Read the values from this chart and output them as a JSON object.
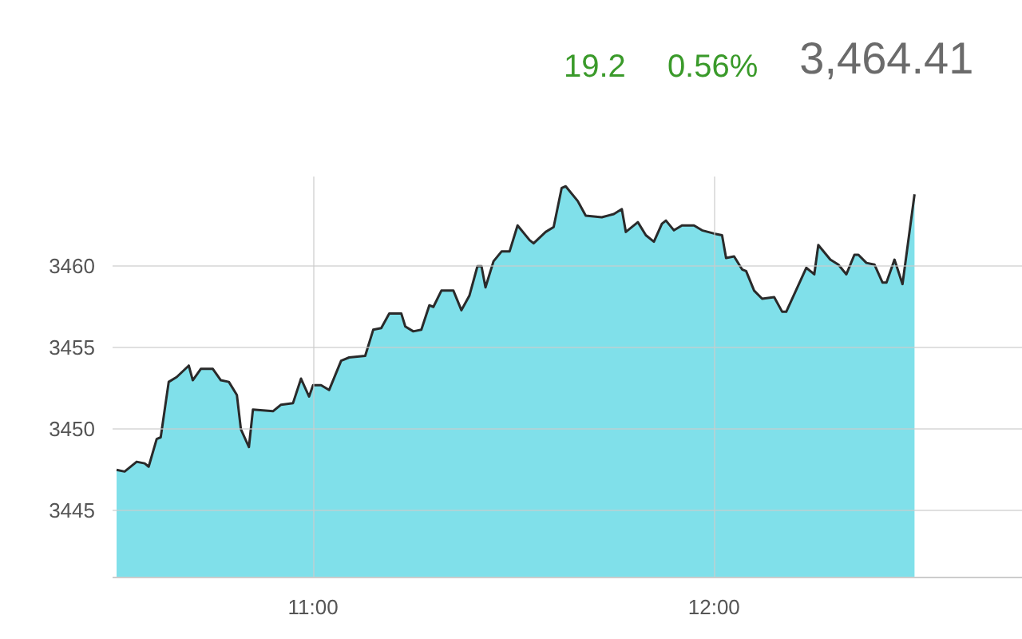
{
  "chart_data": {
    "type": "area",
    "annotations": [
      "19.2",
      "0.56%",
      "3,464.41"
    ],
    "x": [
      10.51,
      10.53,
      10.56,
      10.58,
      10.59,
      10.61,
      10.62,
      10.64,
      10.66,
      10.69,
      10.7,
      10.72,
      10.75,
      10.77,
      10.79,
      10.81,
      10.82,
      10.84,
      10.85,
      10.9,
      10.92,
      10.95,
      10.97,
      10.99,
      11.0,
      11.02,
      11.04,
      11.07,
      11.09,
      11.13,
      11.15,
      11.17,
      11.19,
      11.22,
      11.23,
      11.25,
      11.27,
      11.29,
      11.3,
      11.32,
      11.35,
      11.37,
      11.39,
      11.41,
      11.42,
      11.43,
      11.45,
      11.47,
      11.49,
      11.51,
      11.54,
      11.55,
      11.58,
      11.6,
      11.62,
      11.63,
      11.66,
      11.68,
      11.72,
      11.75,
      11.77,
      11.78,
      11.81,
      11.83,
      11.85,
      11.87,
      11.88,
      11.9,
      11.92,
      11.95,
      11.97,
      12.0,
      12.02,
      12.03,
      12.05,
      12.07,
      12.08,
      12.1,
      12.12,
      12.15,
      12.17,
      12.18,
      12.23,
      12.25,
      12.26,
      12.29,
      12.31,
      12.33,
      12.35,
      12.36,
      12.38,
      12.4,
      12.42,
      12.43,
      12.45,
      12.47,
      12.5
    ],
    "series": [
      {
        "color": "#80e0ea",
        "values": [
          3447.5,
          3447.4,
          3448.0,
          3447.9,
          3447.7,
          3449.4,
          3449.5,
          3452.9,
          3453.2,
          3453.9,
          3453.0,
          3453.7,
          3453.7,
          3453.0,
          3452.9,
          3452.1,
          3450.0,
          3448.9,
          3451.2,
          3451.1,
          3451.5,
          3451.6,
          3453.1,
          3452.0,
          3452.7,
          3452.7,
          3452.4,
          3454.2,
          3454.4,
          3454.5,
          3456.1,
          3456.2,
          3457.1,
          3457.1,
          3456.3,
          3456.0,
          3456.1,
          3457.6,
          3457.5,
          3458.5,
          3458.5,
          3457.3,
          3458.2,
          3460.0,
          3460.0,
          3458.7,
          3460.3,
          3460.9,
          3460.9,
          3462.5,
          3461.6,
          3461.4,
          3462.1,
          3462.4,
          3464.8,
          3464.9,
          3464.0,
          3463.1,
          3463.0,
          3463.2,
          3463.5,
          3462.1,
          3462.7,
          3461.9,
          3461.5,
          3462.6,
          3462.8,
          3462.2,
          3462.5,
          3462.5,
          3462.2,
          3462.0,
          3461.9,
          3460.5,
          3460.6,
          3459.8,
          3459.7,
          3458.5,
          3458.0,
          3458.1,
          3457.2,
          3457.2,
          3459.9,
          3459.5,
          3461.3,
          3460.4,
          3460.1,
          3459.5,
          3460.7,
          3460.7,
          3460.2,
          3460.1,
          3459.0,
          3459.0,
          3460.4,
          3458.9,
          3464.41
        ]
      }
    ],
    "xlim": [
      10.5,
      12.77
    ],
    "ylim": [
      3440.9,
      3465.5
    ],
    "xticks": [
      {
        "value": 11,
        "label": "11:00"
      },
      {
        "value": 12,
        "label": "12:00"
      }
    ],
    "yticks": [
      3445,
      3450,
      3455,
      3460
    ],
    "grid": true
  }
}
